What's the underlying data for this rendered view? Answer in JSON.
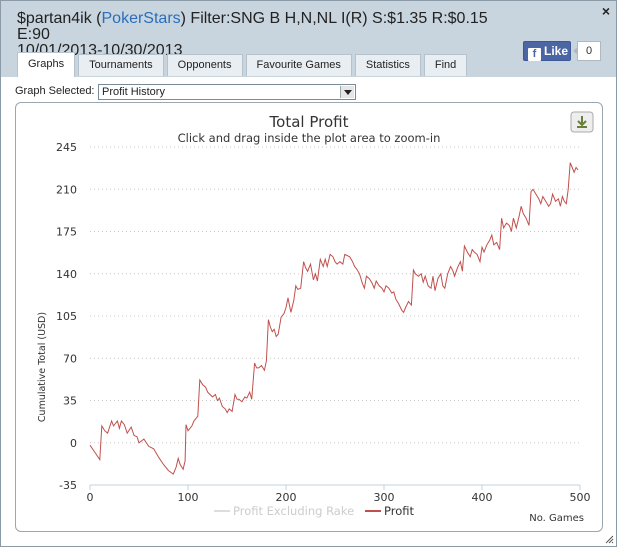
{
  "window": {
    "title_prefix": "$partan4ik (",
    "title_site": "PokerStars",
    "title_suffix": ") Filter:SNG B H,N,NL I(R) S:$1.35 R:$0.15 E:90",
    "title_line2": "10/01/2013-10/30/2013",
    "close_label": "×"
  },
  "facebook": {
    "like_label": "Like",
    "like_count": "0",
    "icon_label": "f"
  },
  "tabs": [
    {
      "label": "Graphs",
      "active": true
    },
    {
      "label": "Tournaments",
      "active": false
    },
    {
      "label": "Opponents",
      "active": false
    },
    {
      "label": "Favourite Games",
      "active": false
    },
    {
      "label": "Statistics",
      "active": false
    },
    {
      "label": "Find",
      "active": false
    }
  ],
  "graph_selector": {
    "label": "Graph Selected:",
    "value": "Profit History"
  },
  "chart_data": {
    "type": "line",
    "title": "Total Profit",
    "subtitle": "Click and drag inside the plot area to zoom-in",
    "xlabel": "No. Games",
    "ylabel": "Cumulative Total (USD)",
    "xlim": [
      0,
      500
    ],
    "ylim": [
      -35,
      245
    ],
    "xticks": [
      0,
      100,
      200,
      300,
      400,
      500
    ],
    "yticks": [
      -35,
      0,
      35,
      70,
      105,
      140,
      175,
      210,
      245
    ],
    "grid": "horizontal-dotted",
    "legend": [
      "Profit Excluding Rake",
      "Profit"
    ],
    "series": [
      {
        "name": "Profit",
        "color": "#c0504d",
        "x": [
          0,
          5,
          10,
          12,
          15,
          18,
          22,
          24,
          28,
          30,
          32,
          35,
          38,
          42,
          45,
          48,
          50,
          55,
          60,
          65,
          70,
          75,
          80,
          85,
          88,
          90,
          92,
          95,
          97,
          98,
          100,
          102,
          104,
          106,
          110,
          112,
          115,
          118,
          120,
          125,
          128,
          130,
          132,
          135,
          138,
          140,
          142,
          145,
          148,
          150,
          152,
          155,
          158,
          160,
          163,
          165,
          168,
          170,
          172,
          175,
          178,
          180,
          182,
          184,
          186,
          188,
          190,
          192,
          195,
          198,
          200,
          202,
          205,
          208,
          210,
          212,
          215,
          218,
          220,
          222,
          225,
          228,
          230,
          232,
          235,
          238,
          240,
          242,
          245,
          248,
          250,
          252,
          255,
          258,
          260,
          265,
          268,
          270,
          272,
          275,
          278,
          280,
          282,
          285,
          288,
          290,
          292,
          295,
          298,
          300,
          302,
          305,
          308,
          310,
          312,
          315,
          318,
          320,
          322,
          325,
          328,
          330,
          332,
          335,
          338,
          340,
          342,
          345,
          348,
          350,
          352,
          355,
          358,
          360,
          362,
          365,
          368,
          370,
          372,
          375,
          378,
          380,
          382,
          385,
          388,
          390,
          392,
          395,
          398,
          400,
          402,
          405,
          408,
          410,
          412,
          415,
          418,
          420,
          422,
          425,
          428,
          430,
          432,
          435,
          438,
          440,
          442,
          445,
          448,
          450,
          452,
          455,
          458,
          460,
          462,
          465,
          468,
          470,
          472,
          475,
          478,
          480,
          482,
          484,
          486,
          488,
          490,
          492,
          494,
          496,
          498
        ],
        "values": [
          -2,
          -8,
          -14,
          14,
          10,
          8,
          18,
          14,
          18,
          12,
          18,
          15,
          8,
          13,
          6,
          5,
          0,
          3,
          -3,
          -5,
          -12,
          -18,
          -23,
          -26,
          -20,
          -13,
          -18,
          -22,
          -15,
          15,
          10,
          12,
          14,
          18,
          22,
          52,
          48,
          46,
          42,
          38,
          40,
          35,
          37,
          30,
          28,
          25,
          28,
          26,
          40,
          36,
          36,
          34,
          38,
          37,
          42,
          36,
          66,
          62,
          62,
          64,
          60,
          68,
          102,
          96,
          92,
          94,
          88,
          90,
          104,
          107,
          112,
          120,
          108,
          118,
          130,
          127,
          128,
          150,
          145,
          142,
          148,
          135,
          140,
          134,
          152,
          146,
          152,
          146,
          156,
          154,
          150,
          148,
          150,
          148,
          156,
          154,
          150,
          146,
          144,
          140,
          132,
          128,
          138,
          136,
          132,
          128,
          134,
          130,
          128,
          125,
          130,
          128,
          124,
          125,
          119,
          115,
          110,
          108,
          112,
          117,
          114,
          143,
          140,
          138,
          140,
          133,
          138,
          130,
          128,
          138,
          126,
          136,
          140,
          130,
          128,
          140,
          146,
          143,
          138,
          145,
          150,
          142,
          163,
          158,
          154,
          160,
          158,
          156,
          150,
          162,
          158,
          164,
          168,
          172,
          164,
          166,
          160,
          186,
          178,
          182,
          180,
          175,
          186,
          178,
          188,
          196,
          190,
          186,
          180,
          208,
          210,
          206,
          202,
          198,
          204,
          200,
          196,
          198,
          206,
          200,
          202,
          196,
          204,
          200,
          198,
          210,
          232,
          228,
          224,
          228,
          226
        ]
      }
    ]
  }
}
